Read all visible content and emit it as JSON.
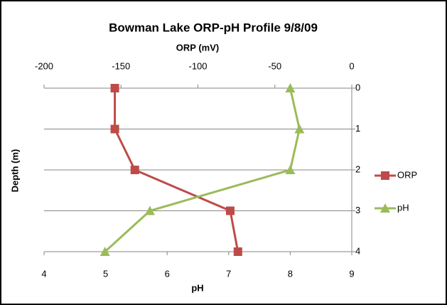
{
  "chart_data": {
    "type": "line",
    "title": "Bowman Lake ORP-pH Profile 9/8/09",
    "x2_label": "ORP (mV)",
    "x_label": "pH",
    "y_label": "Depth (m)",
    "y": [
      0,
      1,
      2,
      3,
      4
    ],
    "ylim": [
      0,
      4
    ],
    "yticks": [
      0,
      1,
      2,
      3,
      4
    ],
    "y_inverted": true,
    "grid": true,
    "xlim": [
      4,
      9
    ],
    "xticks": [
      4,
      5,
      6,
      7,
      8,
      9
    ],
    "x2lim": [
      -200,
      0
    ],
    "x2ticks": [
      -200,
      -150,
      -100,
      -50,
      0
    ],
    "legend": "right",
    "series": [
      {
        "name": "ORP",
        "color": "#be4b48",
        "marker": "square",
        "axis": "x2",
        "values": [
          -154,
          -154,
          -141,
          -79,
          -74
        ]
      },
      {
        "name": "pH",
        "color": "#9bbb59",
        "marker": "triangle",
        "axis": "x",
        "values": [
          8.0,
          8.15,
          8.0,
          5.72,
          4.99
        ]
      }
    ]
  }
}
